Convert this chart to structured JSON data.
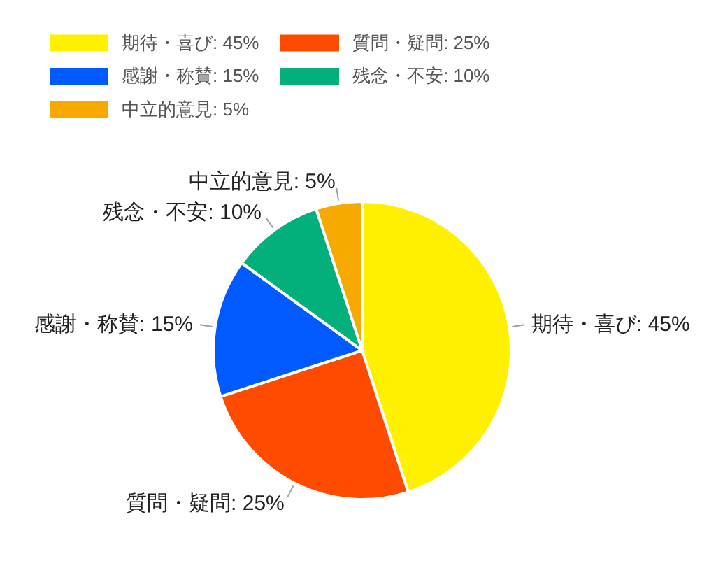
{
  "chart_data": {
    "type": "pie",
    "categories": [
      "期待・喜び: 45%",
      "質問・疑問: 25%",
      "感謝・称賛: 15%",
      "残念・不安: 10%",
      "中立的意見: 5%"
    ],
    "values": [
      45,
      25,
      15,
      10,
      5
    ],
    "colors": [
      "#fff100",
      "#ff4b00",
      "#005aff",
      "#03af7a",
      "#f6aa00"
    ],
    "legend": "top left"
  }
}
